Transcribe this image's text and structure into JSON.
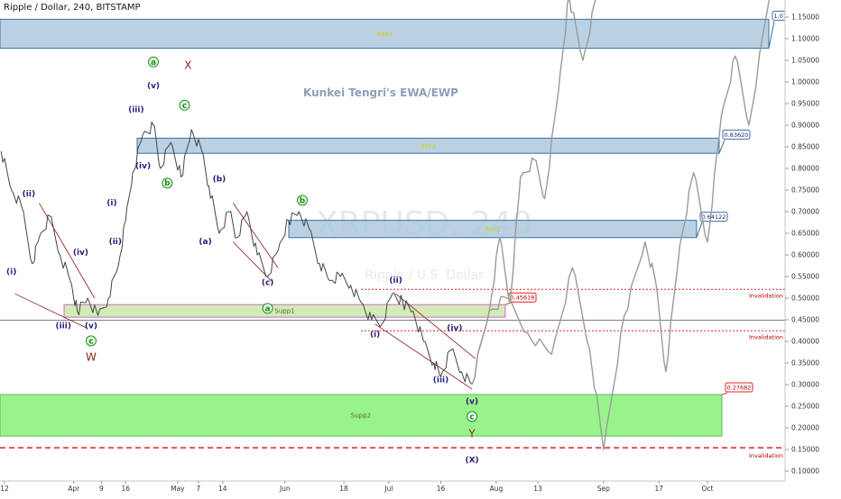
{
  "header": {
    "title": "Ripple / Dollar, 240, BITSTAMP"
  },
  "author": "Kunkei Tengri's EWA/EWP",
  "watermark": {
    "symbol": "XRPUSD, 240",
    "subtitle": "Ripple / U.S. Dollar"
  },
  "colors": {
    "resistance_fill": "#a9c6dc",
    "resistance_stroke": "#3c6ea6",
    "supp1_fill": "#c9e6a6",
    "supp2_fill": "#7ff070",
    "price_line": "#444444",
    "projection": "#9a9a9a",
    "invalidation": "#e02020",
    "wave_purple": "#2b1a7a",
    "wave_green": "#1b8f1b",
    "wave_red": "#8b2a1a"
  },
  "chart_data": {
    "type": "line",
    "title": "Ripple / Dollar, 240, BITSTAMP",
    "xlabel": "",
    "ylabel": "",
    "ylim": [
      0.08,
      1.2
    ],
    "y_ticks": [
      "1.15000",
      "1.10000",
      "1.05000",
      "1.00000",
      "0.95000",
      "0.90000",
      "0.85000",
      "0.80000",
      "0.75000",
      "0.70000",
      "0.65000",
      "0.60000",
      "0.55000",
      "0.50000",
      "0.45000",
      "0.40000",
      "0.35000",
      "0.30000",
      "0.25000",
      "0.20000",
      "0.15000",
      "0.10000"
    ],
    "x_ticks": [
      "12",
      "Apr",
      "9",
      "16",
      "May",
      "7",
      "14",
      "Jun",
      "18",
      "Jul",
      "16",
      "Aug",
      "13",
      "Sep",
      "17",
      "Oct"
    ],
    "x_tick_dates": [
      "2018-03-12",
      "2018-04-01",
      "2018-04-09",
      "2018-04-16",
      "2018-05-01",
      "2018-05-07",
      "2018-05-14",
      "2018-06-01",
      "2018-06-18",
      "2018-07-01",
      "2018-07-16",
      "2018-08-01",
      "2018-08-13",
      "2018-09-01",
      "2018-09-17",
      "2018-10-01"
    ],
    "series": [
      {
        "values": [
          [
            "2018-03-11",
            0.84
          ],
          [
            "2018-03-14",
            0.75
          ],
          [
            "2018-03-17",
            0.71
          ],
          [
            "2018-03-20",
            0.58
          ],
          [
            "2018-03-22",
            0.64
          ],
          [
            "2018-03-25",
            0.69
          ],
          [
            "2018-03-28",
            0.6
          ],
          [
            "2018-03-31",
            0.54
          ],
          [
            "2018-04-02",
            0.47
          ],
          [
            "2018-04-05",
            0.5
          ],
          [
            "2018-04-08",
            0.46
          ],
          [
            "2018-04-11",
            0.5
          ],
          [
            "2018-04-14",
            0.58
          ],
          [
            "2018-04-16",
            0.68
          ],
          [
            "2018-04-18",
            0.79
          ],
          [
            "2018-04-21",
            0.88
          ],
          [
            "2018-04-24",
            0.9
          ],
          [
            "2018-04-26",
            0.8
          ],
          [
            "2018-04-29",
            0.86
          ],
          [
            "2018-05-02",
            0.78
          ],
          [
            "2018-05-05",
            0.89
          ],
          [
            "2018-05-08",
            0.84
          ],
          [
            "2018-05-10",
            0.76
          ],
          [
            "2018-05-13",
            0.65
          ],
          [
            "2018-05-16",
            0.7
          ],
          [
            "2018-05-18",
            0.64
          ],
          [
            "2018-05-21",
            0.7
          ],
          [
            "2018-05-24",
            0.6
          ],
          [
            "2018-05-27",
            0.55
          ],
          [
            "2018-05-30",
            0.61
          ],
          [
            "2018-06-02",
            0.68
          ],
          [
            "2018-06-05",
            0.7
          ],
          [
            "2018-06-08",
            0.66
          ],
          [
            "2018-06-11",
            0.58
          ],
          [
            "2018-06-14",
            0.54
          ],
          [
            "2018-06-17",
            0.55
          ],
          [
            "2018-06-20",
            0.53
          ],
          [
            "2018-06-23",
            0.49
          ],
          [
            "2018-06-26",
            0.45
          ],
          [
            "2018-06-29",
            0.44
          ],
          [
            "2018-07-02",
            0.51
          ],
          [
            "2018-07-05",
            0.49
          ],
          [
            "2018-07-08",
            0.47
          ],
          [
            "2018-07-11",
            0.4
          ],
          [
            "2018-07-14",
            0.35
          ],
          [
            "2018-07-16",
            0.32
          ],
          [
            "2018-07-19",
            0.38
          ],
          [
            "2018-07-22",
            0.33
          ],
          [
            "2018-07-25",
            0.3
          ]
        ]
      },
      {
        "values": [
          [
            "2018-07-25",
            0.3
          ],
          [
            "2018-07-30",
            0.47
          ],
          [
            "2018-08-02",
            0.64
          ],
          [
            "2018-08-05",
            0.49
          ],
          [
            "2018-08-08",
            0.78
          ],
          [
            "2018-08-12",
            0.82
          ],
          [
            "2018-08-15",
            0.73
          ],
          [
            "2018-08-19",
            0.98
          ],
          [
            "2018-08-22",
            1.2
          ],
          [
            "2018-08-26",
            1.05
          ],
          [
            "2018-08-30",
            1.2
          ]
        ]
      },
      {
        "values": [
          [
            "2018-07-25",
            0.3
          ],
          [
            "2018-07-30",
            0.47
          ],
          [
            "2018-08-04",
            0.5
          ],
          [
            "2018-08-10",
            0.42
          ],
          [
            "2018-08-17",
            0.37
          ],
          [
            "2018-08-23",
            0.57
          ],
          [
            "2018-08-28",
            0.38
          ],
          [
            "2018-09-01",
            0.15
          ],
          [
            "2018-09-07",
            0.46
          ],
          [
            "2018-09-13",
            0.63
          ],
          [
            "2018-09-16",
            0.54
          ],
          [
            "2018-09-19",
            0.33
          ],
          [
            "2018-09-23",
            0.62
          ],
          [
            "2018-09-27",
            0.79
          ],
          [
            "2018-10-01",
            0.63
          ],
          [
            "2018-10-05",
            0.92
          ],
          [
            "2018-10-09",
            1.06
          ],
          [
            "2018-10-13",
            0.9
          ],
          [
            "2018-10-19",
            1.2
          ]
        ]
      }
    ],
    "zones": [
      {
        "label": "Res3",
        "top": 1.145,
        "bottom": 1.078,
        "callout": "1.07953"
      },
      {
        "label": "Res2",
        "top": 0.87,
        "bottom": 0.835,
        "callout": "0.83620"
      },
      {
        "label": "Res1",
        "top": 0.68,
        "bottom": 0.64,
        "callout": "0.64122"
      },
      {
        "label": "Supp1",
        "top": 0.485,
        "bottom": 0.456,
        "callout": "0.45618"
      },
      {
        "label": "Supp2",
        "top": 0.277,
        "bottom": 0.181,
        "callout": "0.27682"
      }
    ],
    "invalidation_lines": [
      {
        "value": 0.52023,
        "label": "Invalidation",
        "badge": "0.52023"
      },
      {
        "value": 0.42447,
        "label": "Invalidation",
        "badge": "0.42447"
      },
      {
        "value": 0.15386,
        "label": "Invalidation",
        "badge": "0.15386"
      }
    ],
    "current_price": {
      "symbol": "XRPUSD",
      "value": "0.44898",
      "countdown": "41:18",
      "low_badge": "0.15386"
    },
    "wave_labels": [
      {
        "text": "(i)",
        "date": "2018-03-14",
        "y": 0.555,
        "style": "purple"
      },
      {
        "text": "(ii)",
        "date": "2018-03-19",
        "y": 0.735,
        "style": "purple"
      },
      {
        "text": "(iii)",
        "date": "2018-03-29",
        "y": 0.43,
        "style": "purple"
      },
      {
        "text": "(iv)",
        "date": "2018-04-03",
        "y": 0.6,
        "style": "purple"
      },
      {
        "text": "(v)",
        "date": "2018-04-06",
        "y": 0.43,
        "style": "purple"
      },
      {
        "text": "c",
        "date": "2018-04-06",
        "y": 0.395,
        "style": "green"
      },
      {
        "text": "W",
        "date": "2018-04-06",
        "y": 0.355,
        "style": "red"
      },
      {
        "text": "(i)",
        "date": "2018-04-12",
        "y": 0.715,
        "style": "purple"
      },
      {
        "text": "(ii)",
        "date": "2018-04-13",
        "y": 0.625,
        "style": "purple"
      },
      {
        "text": "(iii)",
        "date": "2018-04-19",
        "y": 0.93,
        "style": "purple"
      },
      {
        "text": "(iv)",
        "date": "2018-04-21",
        "y": 0.8,
        "style": "purple"
      },
      {
        "text": "(v)",
        "date": "2018-04-24",
        "y": 0.985,
        "style": "purple"
      },
      {
        "text": "a",
        "date": "2018-04-24",
        "y": 1.04,
        "style": "green"
      },
      {
        "text": "b",
        "date": "2018-04-28",
        "y": 0.76,
        "style": "green"
      },
      {
        "text": "c",
        "date": "2018-05-03",
        "y": 0.94,
        "style": "green"
      },
      {
        "text": "X",
        "date": "2018-05-04",
        "y": 1.03,
        "style": "red"
      },
      {
        "text": "(a)",
        "date": "2018-05-09",
        "y": 0.625,
        "style": "purple"
      },
      {
        "text": "(b)",
        "date": "2018-05-13",
        "y": 0.77,
        "style": "purple"
      },
      {
        "text": "(c)",
        "date": "2018-05-27",
        "y": 0.53,
        "style": "purple"
      },
      {
        "text": "a",
        "date": "2018-05-27",
        "y": 0.47,
        "style": "green"
      },
      {
        "text": "b",
        "date": "2018-06-06",
        "y": 0.72,
        "style": "green"
      },
      {
        "text": "(i)",
        "date": "2018-06-27",
        "y": 0.41,
        "style": "purple"
      },
      {
        "text": "(ii)",
        "date": "2018-07-03",
        "y": 0.535,
        "style": "purple"
      },
      {
        "text": "(iii)",
        "date": "2018-07-16",
        "y": 0.305,
        "style": "purple"
      },
      {
        "text": "(iv)",
        "date": "2018-07-20",
        "y": 0.425,
        "style": "purple"
      },
      {
        "text": "(v)",
        "date": "2018-07-25",
        "y": 0.255,
        "style": "purple"
      },
      {
        "text": "c",
        "date": "2018-07-25",
        "y": 0.22,
        "style": "green"
      },
      {
        "text": "Y",
        "date": "2018-07-25",
        "y": 0.178,
        "style": "red"
      },
      {
        "text": "(X)",
        "date": "2018-07-25",
        "y": 0.12,
        "style": "purple"
      }
    ]
  }
}
